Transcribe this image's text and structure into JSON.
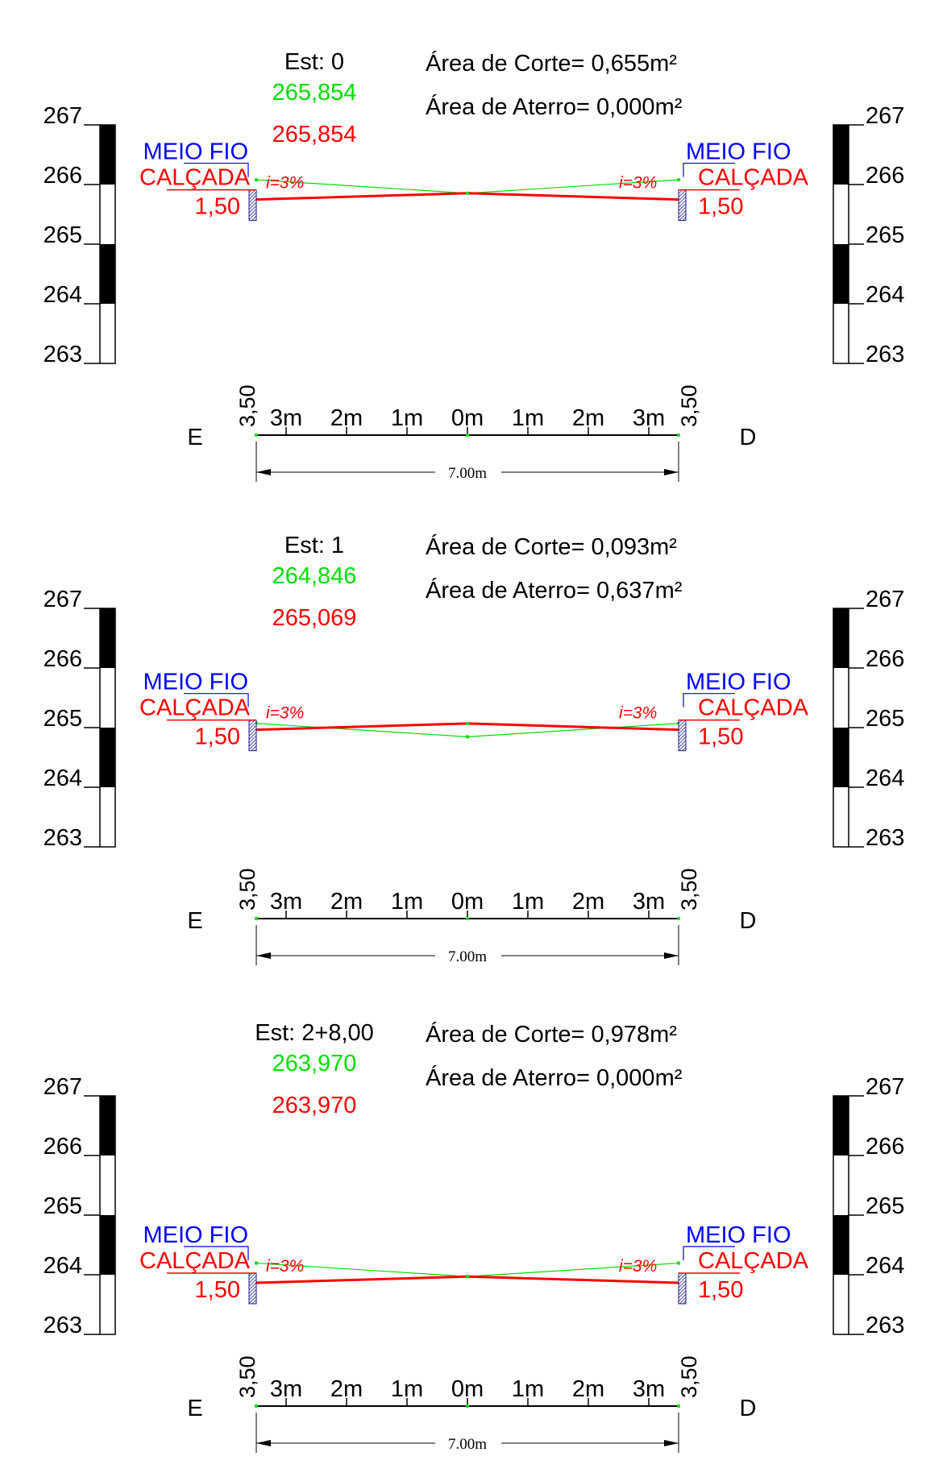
{
  "colors": {
    "existing_ground": "#00dd00",
    "design": "#ff0000",
    "curb_label": "#0000ff",
    "text": "#000000"
  },
  "labels": {
    "curb": "MEIO FIO",
    "sidewalk": "CALÇADA",
    "sidewalk_width": "1,50",
    "slope": "i=3%",
    "left_side": "E",
    "right_side": "D",
    "offset_edge": "3,50",
    "width_dimension": "7.00m",
    "scale_ticks": [
      "3m",
      "2m",
      "1m",
      "0m",
      "1m",
      "2m",
      "3m"
    ],
    "cut_area_prefix": "Área de Corte= ",
    "fill_area_prefix": "Área de Aterro= "
  },
  "sections": [
    {
      "station": "Est: 0",
      "terrain_elev": "265,854",
      "design_elev": "265,854",
      "cut_area": "0,655m²",
      "fill_area": "0,000m²",
      "terrain_center": 265.854,
      "design_center": 265.854,
      "terrain_edge": 266.079,
      "design_edge": 265.749,
      "scale_ticks": [
        267,
        266,
        265,
        264,
        263
      ]
    },
    {
      "station": "Est: 1",
      "terrain_elev": "264,846",
      "design_elev": "265,069",
      "cut_area": "0,093m²",
      "fill_area": "0,637m²",
      "terrain_center": 264.846,
      "design_center": 265.069,
      "terrain_edge": 265.071,
      "design_edge": 264.964,
      "scale_ticks": [
        267,
        266,
        265,
        264,
        263
      ]
    },
    {
      "station": "Est: 2+8,00",
      "terrain_elev": "263,970",
      "design_elev": "263,970",
      "cut_area": "0,978m²",
      "fill_area": "0,000m²",
      "terrain_center": 263.97,
      "design_center": 263.97,
      "terrain_edge": 264.195,
      "design_edge": 263.865,
      "scale_ticks": [
        267,
        266,
        265,
        264,
        263
      ]
    }
  ]
}
